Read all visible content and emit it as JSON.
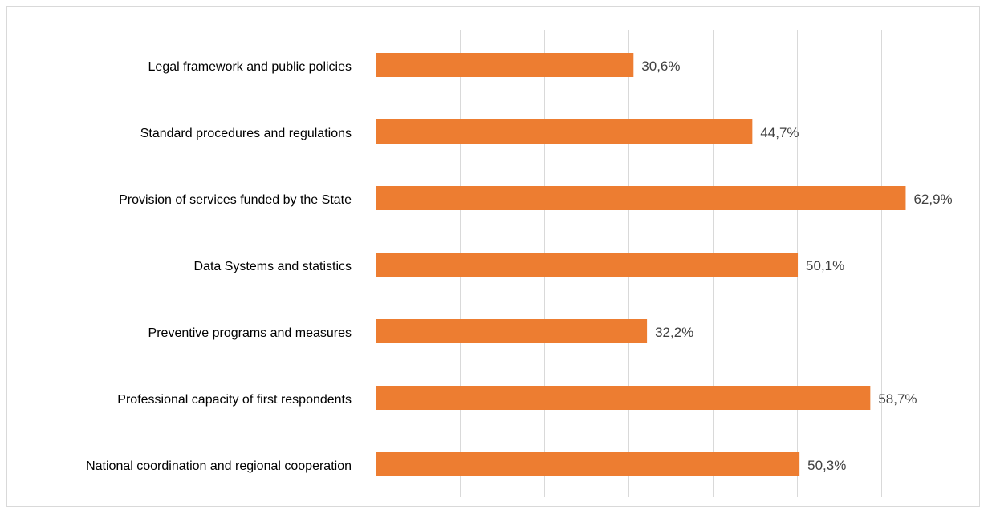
{
  "chart_data": {
    "type": "bar",
    "orientation": "horizontal",
    "categories": [
      "Legal framework and public policies",
      "Standard procedures and regulations",
      "Provision of services funded by the State",
      "Data Systems and statistics",
      "Preventive programs and measures",
      "Professional capacity of first respondents",
      "National coordination and regional cooperation"
    ],
    "values": [
      30.6,
      44.7,
      62.9,
      50.1,
      32.2,
      58.7,
      50.3
    ],
    "value_labels": [
      "30,6%",
      "44,7%",
      "62,9%",
      "50,1%",
      "32,2%",
      "58,7%",
      "50,3%"
    ],
    "xlim": [
      0,
      70
    ],
    "x_grid_step": 10,
    "grid": true,
    "tick_labels_shown": false,
    "legend": "none",
    "bar_color": "#ed7d31",
    "grid_color": "#d9d9d9"
  }
}
